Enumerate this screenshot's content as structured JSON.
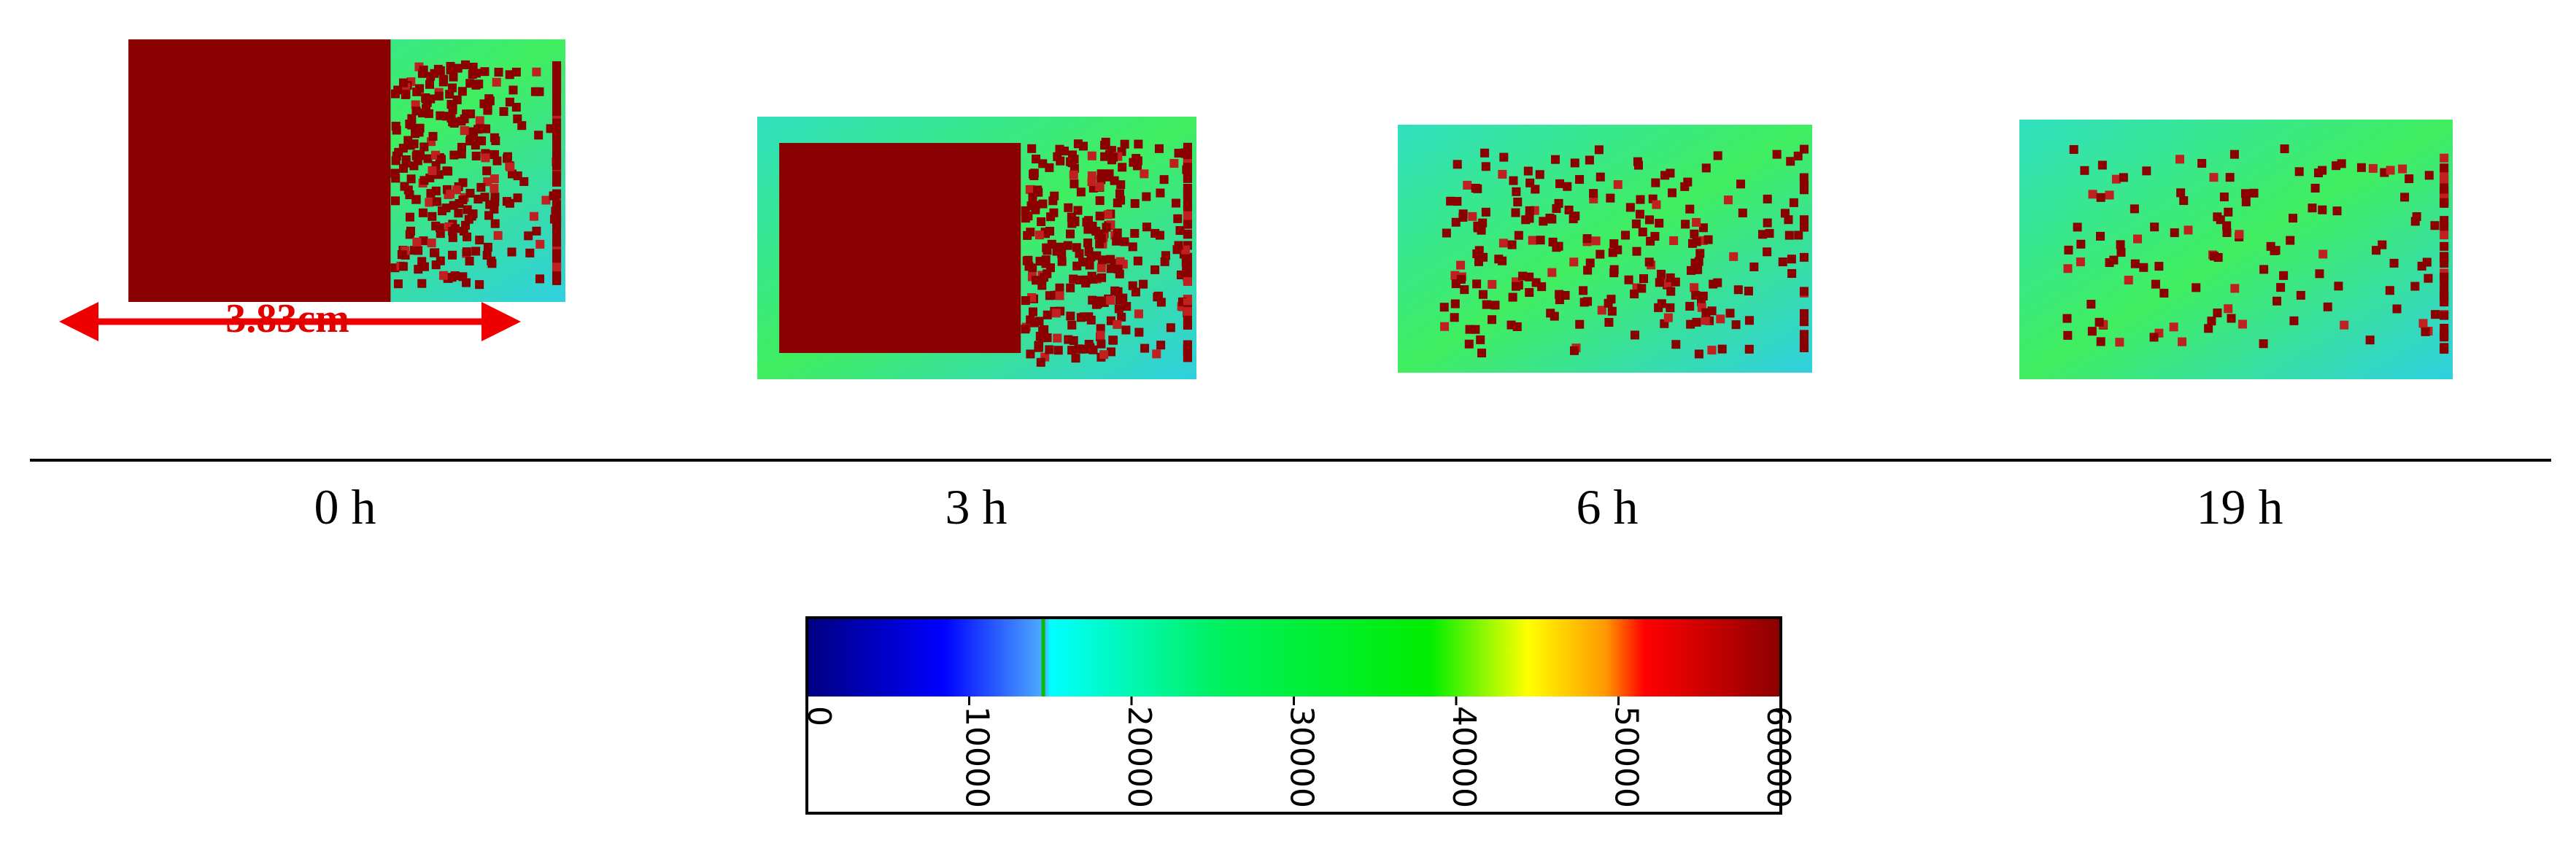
{
  "panels": [
    {
      "label": "0 h"
    },
    {
      "label": "3 h"
    },
    {
      "label": "6 h"
    },
    {
      "label": "19 h"
    }
  ],
  "scale_label": "3.83cm",
  "colorbar": {
    "ticks": [
      0,
      10000,
      20000,
      30000,
      40000,
      50000,
      60000
    ]
  }
}
